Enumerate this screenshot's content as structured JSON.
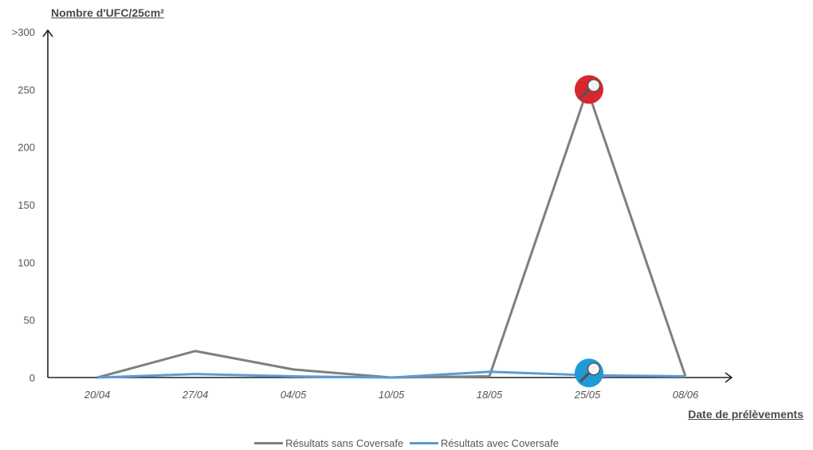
{
  "chart_data": {
    "type": "line",
    "title": "",
    "ylabel": "Nombre d'UFC/25cm²",
    "xlabel": "Date de prélèvements",
    "categories": [
      "20/04",
      "27/04",
      "04/05",
      "10/05",
      "18/05",
      "25/05",
      "08/06"
    ],
    "y_ticks": [
      {
        "value": 0,
        "label": "0"
      },
      {
        "value": 50,
        "label": "50"
      },
      {
        "value": 100,
        "label": "100"
      },
      {
        "value": 150,
        "label": "150"
      },
      {
        "value": 200,
        "label": "200"
      },
      {
        "value": 250,
        "label": "250"
      },
      {
        "value": 300,
        "label": ">300"
      }
    ],
    "ylim": [
      0,
      300
    ],
    "grid": false,
    "legend_position": "bottom",
    "series": [
      {
        "name": "Résultats sans Coversafe",
        "color": "#7f7f7f",
        "values": [
          0,
          23,
          7,
          0,
          1,
          250,
          1
        ]
      },
      {
        "name": "Résultats avec Coversafe",
        "color": "#5b9bd5",
        "values": [
          0,
          3,
          1,
          0,
          5,
          2,
          1
        ]
      }
    ],
    "markers": [
      {
        "series": 0,
        "category": "25/05",
        "value": 250,
        "color": "#d9262c",
        "icon": "magnifier-icon"
      },
      {
        "series": 1,
        "category": "25/05",
        "value": 4,
        "color": "#1e9bd7",
        "icon": "magnifier-icon"
      }
    ]
  }
}
